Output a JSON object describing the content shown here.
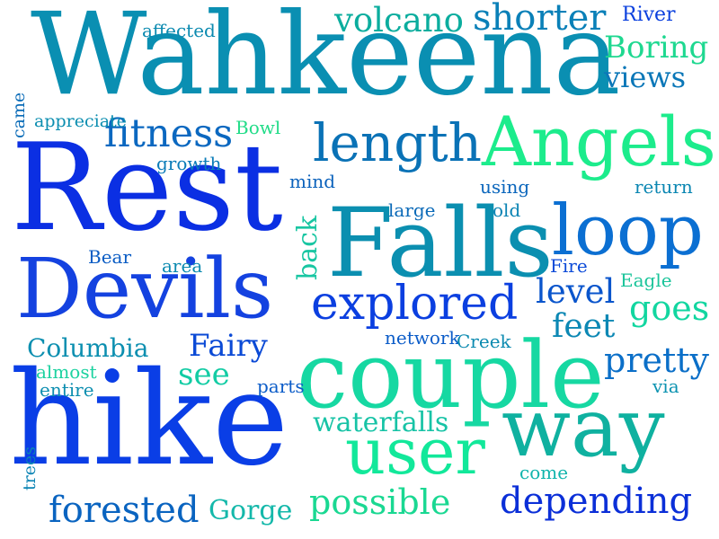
{
  "words": [
    {
      "text": "Wahkeena",
      "color": "#0a8fb2"
    },
    {
      "text": "Rest",
      "color": "#0b2fe3"
    },
    {
      "text": "hike",
      "color": "#0a3ee6"
    },
    {
      "text": "Falls",
      "color": "#0b8fb0"
    },
    {
      "text": "Devils",
      "color": "#1442e0"
    },
    {
      "text": "couple",
      "color": "#16d8a2"
    },
    {
      "text": "Angels",
      "color": "#1cec8c"
    },
    {
      "text": "way",
      "color": "#0fb1a0"
    },
    {
      "text": "loop",
      "color": "#0b6fd2"
    },
    {
      "text": "user",
      "color": "#12e89a"
    },
    {
      "text": "length",
      "color": "#0a72b6"
    },
    {
      "text": "explored",
      "color": "#0b3fe0"
    },
    {
      "text": "fitness",
      "color": "#0b68c0"
    },
    {
      "text": "shorter",
      "color": "#0a80b8"
    },
    {
      "text": "volcano",
      "color": "#0bad9e"
    },
    {
      "text": "depending",
      "color": "#0b2fd8"
    },
    {
      "text": "forested",
      "color": "#0a64c0"
    },
    {
      "text": "possible",
      "color": "#1ad892"
    },
    {
      "text": "waterfalls",
      "color": "#17c3a6"
    },
    {
      "text": "pretty",
      "color": "#0b6fc8"
    },
    {
      "text": "Columbia",
      "color": "#0c8fb0"
    },
    {
      "text": "Fairy",
      "color": "#0b4ad6"
    },
    {
      "text": "level",
      "color": "#0a55cc"
    },
    {
      "text": "goes",
      "color": "#12d6a0"
    },
    {
      "text": "feet",
      "color": "#0c88b4"
    },
    {
      "text": "Boring",
      "color": "#1ed890"
    },
    {
      "text": "views",
      "color": "#0b77b8"
    },
    {
      "text": "see",
      "color": "#12cca4"
    },
    {
      "text": "Gorge",
      "color": "#14b8aa"
    },
    {
      "text": "River",
      "color": "#0b40de"
    },
    {
      "text": "affected",
      "color": "#0b8ab0"
    },
    {
      "text": "Bowl",
      "color": "#22dc88"
    },
    {
      "text": "growth",
      "color": "#0b7cb8"
    },
    {
      "text": "mind",
      "color": "#0b62bc"
    },
    {
      "text": "using",
      "color": "#0b66bc"
    },
    {
      "text": "return",
      "color": "#0a86b2"
    },
    {
      "text": "large",
      "color": "#0b6ab8"
    },
    {
      "text": "old",
      "color": "#0b84b4"
    },
    {
      "text": "Bear",
      "color": "#0a5cc4"
    },
    {
      "text": "area",
      "color": "#0b8ab0"
    },
    {
      "text": "Fire",
      "color": "#0b4ad8"
    },
    {
      "text": "Eagle",
      "color": "#1ac49a"
    },
    {
      "text": "network",
      "color": "#0b5cc8"
    },
    {
      "text": "Creek",
      "color": "#0b8ab0"
    },
    {
      "text": "almost",
      "color": "#1cd2a0"
    },
    {
      "text": "entire",
      "color": "#0c8eb0"
    },
    {
      "text": "parts",
      "color": "#0b5cc8"
    },
    {
      "text": "via",
      "color": "#0a92b0"
    },
    {
      "text": "come",
      "color": "#10b4ac"
    },
    {
      "text": "appreciate",
      "color": "#0c8eb0"
    },
    {
      "text": "back",
      "color": "#18c6a2"
    },
    {
      "text": "came",
      "color": "#0b6cb8"
    },
    {
      "text": "trees",
      "color": "#0c84b4"
    }
  ]
}
